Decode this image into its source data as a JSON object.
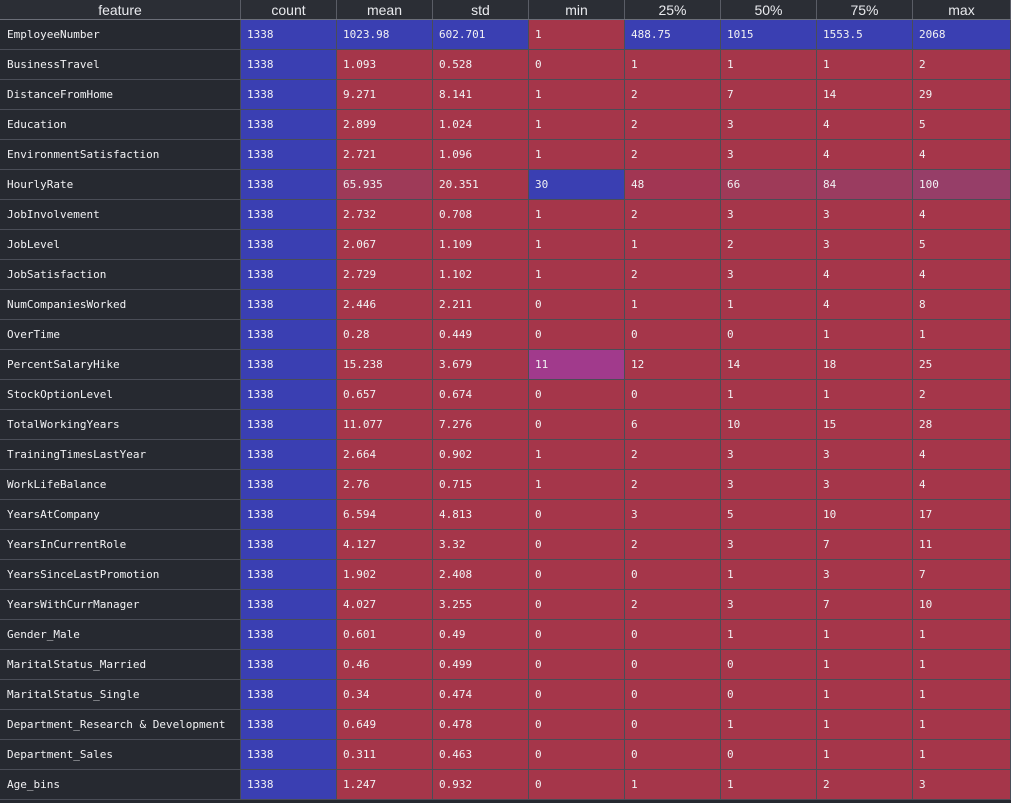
{
  "columns": [
    "feature",
    "count",
    "mean",
    "std",
    "min",
    "25%",
    "50%",
    "75%",
    "max"
  ],
  "rows": [
    {
      "feature": "EmployeeNumber",
      "values": [
        "1338",
        "1023.98",
        "602.701",
        "1",
        "488.75",
        "1015",
        "1553.5",
        "2068"
      ],
      "colors": [
        "#3a3fb2",
        "#3a3fb2",
        "#3a3fb2",
        "#a5364a",
        "#3a3fb2",
        "#3a3fb2",
        "#3a3fb2",
        "#3a3fb2"
      ]
    },
    {
      "feature": "BusinessTravel",
      "values": [
        "1338",
        "1.093",
        "0.528",
        "0",
        "1",
        "1",
        "1",
        "2"
      ],
      "colors": [
        "#3a3fb2",
        "#a5364a",
        "#a5364a",
        "#a5364a",
        "#a5364a",
        "#a5364a",
        "#a5364a",
        "#a5364a"
      ]
    },
    {
      "feature": "DistanceFromHome",
      "values": [
        "1338",
        "9.271",
        "8.141",
        "1",
        "2",
        "7",
        "14",
        "29"
      ],
      "colors": [
        "#3a3fb2",
        "#a5364a",
        "#a5364a",
        "#a5364a",
        "#a5364a",
        "#a5364a",
        "#a5364a",
        "#a5364a"
      ]
    },
    {
      "feature": "Education",
      "values": [
        "1338",
        "2.899",
        "1.024",
        "1",
        "2",
        "3",
        "4",
        "5"
      ],
      "colors": [
        "#3a3fb2",
        "#a5364a",
        "#a5364a",
        "#a5364a",
        "#a5364a",
        "#a5364a",
        "#a5364a",
        "#a5364a"
      ]
    },
    {
      "feature": "EnvironmentSatisfaction",
      "values": [
        "1338",
        "2.721",
        "1.096",
        "1",
        "2",
        "3",
        "4",
        "4"
      ],
      "colors": [
        "#3a3fb2",
        "#a5364a",
        "#a5364a",
        "#a5364a",
        "#a5364a",
        "#a5364a",
        "#a5364a",
        "#a5364a"
      ]
    },
    {
      "feature": "HourlyRate",
      "values": [
        "1338",
        "65.935",
        "20.351",
        "30",
        "48",
        "66",
        "84",
        "100"
      ],
      "colors": [
        "#3a3fb2",
        "#9e3a58",
        "#a5364a",
        "#3a3fb2",
        "#a13653",
        "#9e3a58",
        "#9a3c60",
        "#963e68"
      ]
    },
    {
      "feature": "JobInvolvement",
      "values": [
        "1338",
        "2.732",
        "0.708",
        "1",
        "2",
        "3",
        "3",
        "4"
      ],
      "colors": [
        "#3a3fb2",
        "#a5364a",
        "#a5364a",
        "#a5364a",
        "#a5364a",
        "#a5364a",
        "#a5364a",
        "#a5364a"
      ]
    },
    {
      "feature": "JobLevel",
      "values": [
        "1338",
        "2.067",
        "1.109",
        "1",
        "1",
        "2",
        "3",
        "5"
      ],
      "colors": [
        "#3a3fb2",
        "#a5364a",
        "#a5364a",
        "#a5364a",
        "#a5364a",
        "#a5364a",
        "#a5364a",
        "#a5364a"
      ]
    },
    {
      "feature": "JobSatisfaction",
      "values": [
        "1338",
        "2.729",
        "1.102",
        "1",
        "2",
        "3",
        "4",
        "4"
      ],
      "colors": [
        "#3a3fb2",
        "#a5364a",
        "#a5364a",
        "#a5364a",
        "#a5364a",
        "#a5364a",
        "#a5364a",
        "#a5364a"
      ]
    },
    {
      "feature": "NumCompaniesWorked",
      "values": [
        "1338",
        "2.446",
        "2.211",
        "0",
        "1",
        "1",
        "4",
        "8"
      ],
      "colors": [
        "#3a3fb2",
        "#a5364a",
        "#a5364a",
        "#a5364a",
        "#a5364a",
        "#a5364a",
        "#a5364a",
        "#a5364a"
      ]
    },
    {
      "feature": "OverTime",
      "values": [
        "1338",
        "0.28",
        "0.449",
        "0",
        "0",
        "0",
        "1",
        "1"
      ],
      "colors": [
        "#3a3fb2",
        "#a5364a",
        "#a5364a",
        "#a5364a",
        "#a5364a",
        "#a5364a",
        "#a5364a",
        "#a5364a"
      ]
    },
    {
      "feature": "PercentSalaryHike",
      "values": [
        "1338",
        "15.238",
        "3.679",
        "11",
        "12",
        "14",
        "18",
        "25"
      ],
      "colors": [
        "#3a3fb2",
        "#a5364a",
        "#a5364a",
        "#a13a8c",
        "#a5364a",
        "#a5364a",
        "#a5364a",
        "#a5364a"
      ]
    },
    {
      "feature": "StockOptionLevel",
      "values": [
        "1338",
        "0.657",
        "0.674",
        "0",
        "0",
        "1",
        "1",
        "2"
      ],
      "colors": [
        "#3a3fb2",
        "#a5364a",
        "#a5364a",
        "#a5364a",
        "#a5364a",
        "#a5364a",
        "#a5364a",
        "#a5364a"
      ]
    },
    {
      "feature": "TotalWorkingYears",
      "values": [
        "1338",
        "11.077",
        "7.276",
        "0",
        "6",
        "10",
        "15",
        "28"
      ],
      "colors": [
        "#3a3fb2",
        "#a5364a",
        "#a5364a",
        "#a5364a",
        "#a5364a",
        "#a5364a",
        "#a5364a",
        "#a5364a"
      ]
    },
    {
      "feature": "TrainingTimesLastYear",
      "values": [
        "1338",
        "2.664",
        "0.902",
        "1",
        "2",
        "3",
        "3",
        "4"
      ],
      "colors": [
        "#3a3fb2",
        "#a5364a",
        "#a5364a",
        "#a5364a",
        "#a5364a",
        "#a5364a",
        "#a5364a",
        "#a5364a"
      ]
    },
    {
      "feature": "WorkLifeBalance",
      "values": [
        "1338",
        "2.76",
        "0.715",
        "1",
        "2",
        "3",
        "3",
        "4"
      ],
      "colors": [
        "#3a3fb2",
        "#a5364a",
        "#a5364a",
        "#a5364a",
        "#a5364a",
        "#a5364a",
        "#a5364a",
        "#a5364a"
      ]
    },
    {
      "feature": "YearsAtCompany",
      "values": [
        "1338",
        "6.594",
        "4.813",
        "0",
        "3",
        "5",
        "10",
        "17"
      ],
      "colors": [
        "#3a3fb2",
        "#a5364a",
        "#a5364a",
        "#a5364a",
        "#a5364a",
        "#a5364a",
        "#a5364a",
        "#a5364a"
      ]
    },
    {
      "feature": "YearsInCurrentRole",
      "values": [
        "1338",
        "4.127",
        "3.32",
        "0",
        "2",
        "3",
        "7",
        "11"
      ],
      "colors": [
        "#3a3fb2",
        "#a5364a",
        "#a5364a",
        "#a5364a",
        "#a5364a",
        "#a5364a",
        "#a5364a",
        "#a5364a"
      ]
    },
    {
      "feature": "YearsSinceLastPromotion",
      "values": [
        "1338",
        "1.902",
        "2.408",
        "0",
        "0",
        "1",
        "3",
        "7"
      ],
      "colors": [
        "#3a3fb2",
        "#a5364a",
        "#a5364a",
        "#a5364a",
        "#a5364a",
        "#a5364a",
        "#a5364a",
        "#a5364a"
      ]
    },
    {
      "feature": "YearsWithCurrManager",
      "values": [
        "1338",
        "4.027",
        "3.255",
        "0",
        "2",
        "3",
        "7",
        "10"
      ],
      "colors": [
        "#3a3fb2",
        "#a5364a",
        "#a5364a",
        "#a5364a",
        "#a5364a",
        "#a5364a",
        "#a5364a",
        "#a5364a"
      ]
    },
    {
      "feature": "Gender_Male",
      "values": [
        "1338",
        "0.601",
        "0.49",
        "0",
        "0",
        "1",
        "1",
        "1"
      ],
      "colors": [
        "#3a3fb2",
        "#a5364a",
        "#a5364a",
        "#a5364a",
        "#a5364a",
        "#a5364a",
        "#a5364a",
        "#a5364a"
      ]
    },
    {
      "feature": "MaritalStatus_Married",
      "values": [
        "1338",
        "0.46",
        "0.499",
        "0",
        "0",
        "0",
        "1",
        "1"
      ],
      "colors": [
        "#3a3fb2",
        "#a5364a",
        "#a5364a",
        "#a5364a",
        "#a5364a",
        "#a5364a",
        "#a5364a",
        "#a5364a"
      ]
    },
    {
      "feature": "MaritalStatus_Single",
      "values": [
        "1338",
        "0.34",
        "0.474",
        "0",
        "0",
        "0",
        "1",
        "1"
      ],
      "colors": [
        "#3a3fb2",
        "#a5364a",
        "#a5364a",
        "#a5364a",
        "#a5364a",
        "#a5364a",
        "#a5364a",
        "#a5364a"
      ]
    },
    {
      "feature": "Department_Research & Development",
      "values": [
        "1338",
        "0.649",
        "0.478",
        "0",
        "0",
        "1",
        "1",
        "1"
      ],
      "colors": [
        "#3a3fb2",
        "#a5364a",
        "#a5364a",
        "#a5364a",
        "#a5364a",
        "#a5364a",
        "#a5364a",
        "#a5364a"
      ]
    },
    {
      "feature": "Department_Sales",
      "values": [
        "1338",
        "0.311",
        "0.463",
        "0",
        "0",
        "0",
        "1",
        "1"
      ],
      "colors": [
        "#3a3fb2",
        "#a5364a",
        "#a5364a",
        "#a5364a",
        "#a5364a",
        "#a5364a",
        "#a5364a",
        "#a5364a"
      ]
    },
    {
      "feature": "Age_bins",
      "values": [
        "1338",
        "1.247",
        "0.932",
        "0",
        "1",
        "1",
        "2",
        "3"
      ],
      "colors": [
        "#3a3fb2",
        "#a5364a",
        "#a5364a",
        "#a5364a",
        "#a5364a",
        "#a5364a",
        "#a5364a",
        "#a5364a"
      ]
    }
  ]
}
